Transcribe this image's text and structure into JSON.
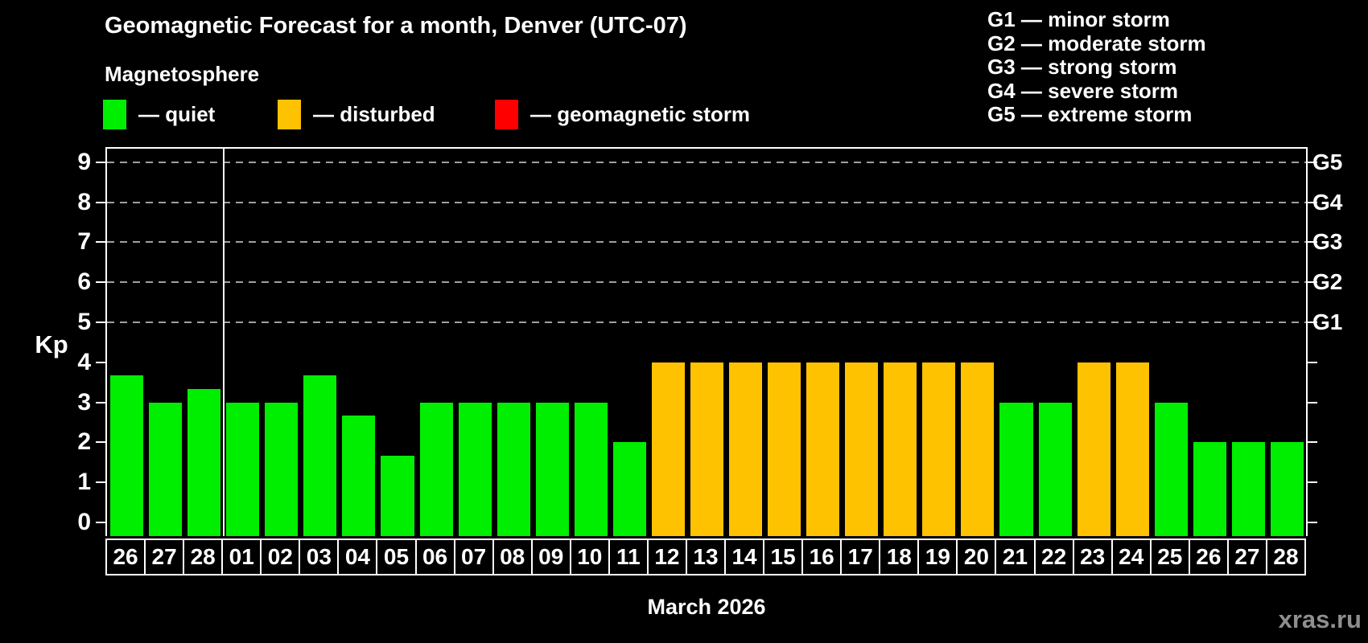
{
  "title": "Geomagnetic Forecast for a month, Denver (UTC-07)",
  "subtitle": "Magnetosphere",
  "colors": {
    "background": "#000000",
    "quiet": "#00ee00",
    "disturbed": "#ffc200",
    "storm": "#ff0000",
    "axis": "#ffffff",
    "grid": "#a0a0a0",
    "watermark": "#8f8f8f"
  },
  "legend": {
    "items": [
      {
        "name": "quiet",
        "label": "— quiet",
        "color": "#00ee00"
      },
      {
        "name": "disturbed",
        "label": "— disturbed",
        "color": "#ffc200"
      },
      {
        "name": "geomagnetic-storm",
        "label": "— geomagnetic storm",
        "color": "#ff0000"
      }
    ]
  },
  "storm_scale": [
    {
      "text": "G1 — minor storm"
    },
    {
      "text": "G2 — moderate storm"
    },
    {
      "text": "G3 — strong storm"
    },
    {
      "text": "G4 — severe storm"
    },
    {
      "text": "G5 — extreme storm"
    }
  ],
  "watermark": "xras.ru",
  "chart_data": {
    "type": "bar",
    "title": "Geomagnetic Forecast for a month, Denver (UTC-07)",
    "xlabel": "March 2026",
    "ylabel": "Kp",
    "ylim": [
      0,
      9
    ],
    "yticks": [
      0,
      1,
      2,
      3,
      4,
      5,
      6,
      7,
      8,
      9
    ],
    "grid": "dashed horizontal at Kp 5-9 only",
    "categories": [
      "26",
      "27",
      "28",
      "01",
      "02",
      "03",
      "04",
      "05",
      "06",
      "07",
      "08",
      "09",
      "10",
      "11",
      "12",
      "13",
      "14",
      "15",
      "16",
      "17",
      "18",
      "19",
      "20",
      "21",
      "22",
      "23",
      "24",
      "25",
      "26",
      "27",
      "28"
    ],
    "values": [
      3.67,
      3,
      3.33,
      3,
      3,
      3.67,
      2.67,
      1.67,
      3,
      3,
      3,
      3,
      3,
      2,
      4,
      4,
      4,
      4,
      4,
      4,
      4,
      4,
      4,
      3,
      3,
      4,
      4,
      3,
      2,
      2,
      2
    ],
    "color_thresholds": {
      "disturbed_min": 4,
      "storm_min": 5
    },
    "right_axis": [
      {
        "label": "G1",
        "kp": 5
      },
      {
        "label": "G2",
        "kp": 6
      },
      {
        "label": "G3",
        "kp": 7
      },
      {
        "label": "G4",
        "kp": 8
      },
      {
        "label": "G5",
        "kp": 9
      }
    ],
    "month_separator_after": 3,
    "prev_month_days": 3
  }
}
